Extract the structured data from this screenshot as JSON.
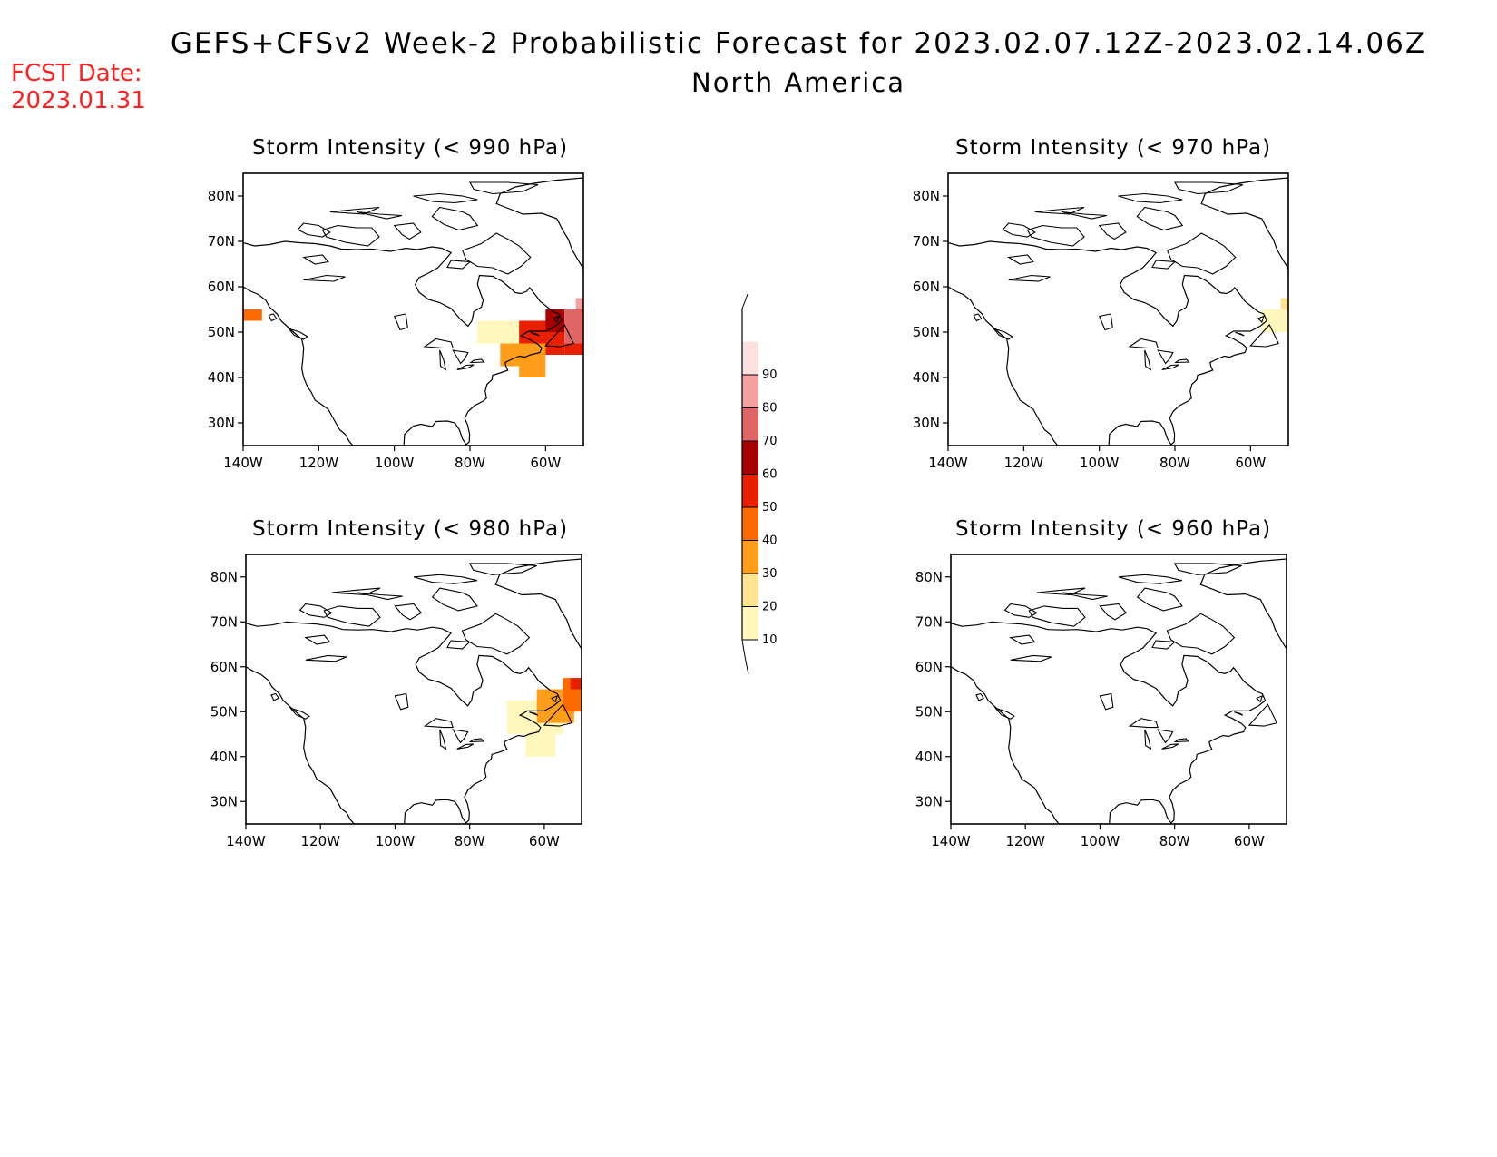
{
  "title": "GEFS+CFSv2 Week-2 Probabilistic Forecast for 2023.02.07.12Z-2023.02.14.06Z",
  "subtitle": "North America",
  "fcst_date": {
    "label": "FCST Date:",
    "value": "2023.01.31"
  },
  "chart_data": {
    "type": "heatmap",
    "region": "North America",
    "lon_ticks": [
      "140W",
      "120W",
      "100W",
      "80W",
      "60W"
    ],
    "lat_ticks": [
      "80N",
      "70N",
      "60N",
      "50N",
      "40N",
      "30N"
    ],
    "panels": [
      {
        "title": "Storm Intensity (< 990 hPa)",
        "regions": [
          {
            "lon": [
              -140,
              -135
            ],
            "lat": [
              52.5,
              55
            ],
            "prob": 45
          },
          {
            "lon": [
              -78,
              -67
            ],
            "lat": [
              47.5,
              52.5
            ],
            "prob": 15
          },
          {
            "lon": [
              -72,
              -60
            ],
            "lat": [
              42.5,
              47.5
            ],
            "prob": 35
          },
          {
            "lon": [
              -67,
              -60
            ],
            "lat": [
              40,
              42.5
            ],
            "prob": 35
          },
          {
            "lon": [
              -67,
              -55
            ],
            "lat": [
              47.5,
              52.5
            ],
            "prob": 55
          },
          {
            "lon": [
              -60,
              -55
            ],
            "lat": [
              45,
              47.5
            ],
            "prob": 50
          },
          {
            "lon": [
              -60,
              -55
            ],
            "lat": [
              50,
              55
            ],
            "prob": 65
          },
          {
            "lon": [
              -55,
              -50
            ],
            "lat": [
              47.5,
              55
            ],
            "prob": 75
          },
          {
            "lon": [
              -55,
              -50
            ],
            "lat": [
              45,
              47.5
            ],
            "prob": 55
          },
          {
            "lon": [
              -52,
              -50
            ],
            "lat": [
              55,
              57.5
            ],
            "prob": 85
          }
        ]
      },
      {
        "title": "Storm Intensity (< 970 hPa)",
        "regions": [
          {
            "lon": [
              -57,
              -50
            ],
            "lat": [
              50,
              55
            ],
            "prob": 15
          },
          {
            "lon": [
              -52,
              -50
            ],
            "lat": [
              55,
              57.5
            ],
            "prob": 25
          }
        ]
      },
      {
        "title": "Storm Intensity (< 980 hPa)",
        "regions": [
          {
            "lon": [
              -70,
              -55
            ],
            "lat": [
              45,
              52.5
            ],
            "prob": 15
          },
          {
            "lon": [
              -65,
              -57
            ],
            "lat": [
              40,
              45
            ],
            "prob": 15
          },
          {
            "lon": [
              -62,
              -52
            ],
            "lat": [
              47.5,
              55
            ],
            "prob": 35
          },
          {
            "lon": [
              -55,
              -50
            ],
            "lat": [
              50,
              57.5
            ],
            "prob": 45
          },
          {
            "lon": [
              -53,
              -50
            ],
            "lat": [
              55,
              57.5
            ],
            "prob": 55
          }
        ]
      },
      {
        "title": "Storm Intensity (< 960 hPa)",
        "regions": []
      }
    ],
    "colorbar": {
      "levels": [
        "10",
        "20",
        "30",
        "40",
        "50",
        "60",
        "70",
        "80",
        "90"
      ],
      "colors": [
        "#fff7bc",
        "#fee391",
        "#fe9e1a",
        "#ff6a00",
        "#e82000",
        "#a80000",
        "#e06666",
        "#f4a0a0",
        "#fde0e0",
        "#ffffff"
      ]
    }
  }
}
